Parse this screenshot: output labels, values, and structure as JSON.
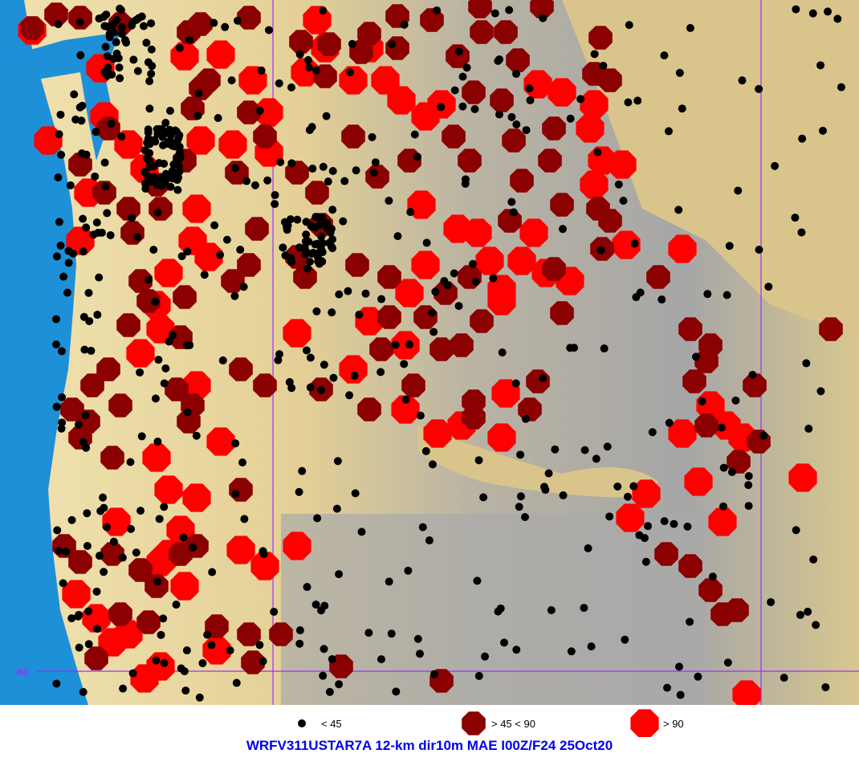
{
  "title": "WRFV311USTAR7A 12-km dir10m MAE I00Z/F24 25Oct20",
  "latitude_label": "40",
  "legend": [
    {
      "label": "< 45",
      "color": "#000000",
      "size": "small"
    },
    {
      "label": "> 45 < 90",
      "color": "#8b0000",
      "size": "medium"
    },
    {
      "label": "> 90",
      "color": "#ff0000",
      "size": "large"
    }
  ],
  "colors": {
    "ocean": "#1e90d8",
    "lowland": "#e6d29a",
    "mountain": "#a8a8a8",
    "gridline": "#9b30ff"
  }
}
